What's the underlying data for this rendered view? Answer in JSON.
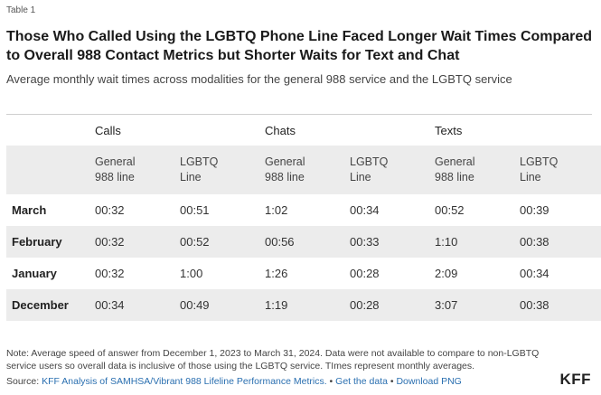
{
  "table_label": "Table 1",
  "title": "Those Who Called Using the LGBTQ Phone Line Faced Longer Wait Times Compared to Overall 988 Contact Metrics but Shorter Waits for Text and Chat",
  "subtitle": "Average monthly wait times across modalities for the general 988 service and the LGBTQ service",
  "groups": [
    "Calls",
    "Chats",
    "Texts"
  ],
  "subheaders": [
    {
      "line1": "General",
      "line2": "988 line"
    },
    {
      "line1": "LGBTQ",
      "line2": "Line"
    },
    {
      "line1": "General",
      "line2": "988 line"
    },
    {
      "line1": "LGBTQ",
      "line2": "Line"
    },
    {
      "line1": "General",
      "line2": "988 line"
    },
    {
      "line1": "LGBTQ",
      "line2": "Line"
    }
  ],
  "rows": [
    {
      "month": "March",
      "values": [
        "00:32",
        "00:51",
        "1:02",
        "00:34",
        "00:52",
        "00:39"
      ]
    },
    {
      "month": "February",
      "values": [
        "00:32",
        "00:52",
        "00:56",
        "00:33",
        "1:10",
        "00:38"
      ]
    },
    {
      "month": "January",
      "values": [
        "00:32",
        "1:00",
        "1:26",
        "00:28",
        "2:09",
        "00:34"
      ]
    },
    {
      "month": "December",
      "values": [
        "00:34",
        "00:49",
        "1:19",
        "00:28",
        "3:07",
        "00:38"
      ]
    }
  ],
  "note": "Note: Average speed of answer from December 1, 2023 to March 31, 2024. Data were not available to compare to non-LGBTQ service users so overall data is inclusive of those using the LGBTQ service. TImes represent monthly averages.",
  "source": {
    "prefix": "Source: ",
    "link": "KFF Analysis of SAMHSA/Vibrant 988 Lifeline Performance Metrics.",
    "sep1": " • ",
    "get_data": "Get the data",
    "sep2": " • ",
    "download": "Download PNG"
  },
  "logo": "KFF",
  "colors": {
    "shade": "#ececec",
    "link": "#2a6fb0",
    "divider": "#cfcfcf"
  }
}
